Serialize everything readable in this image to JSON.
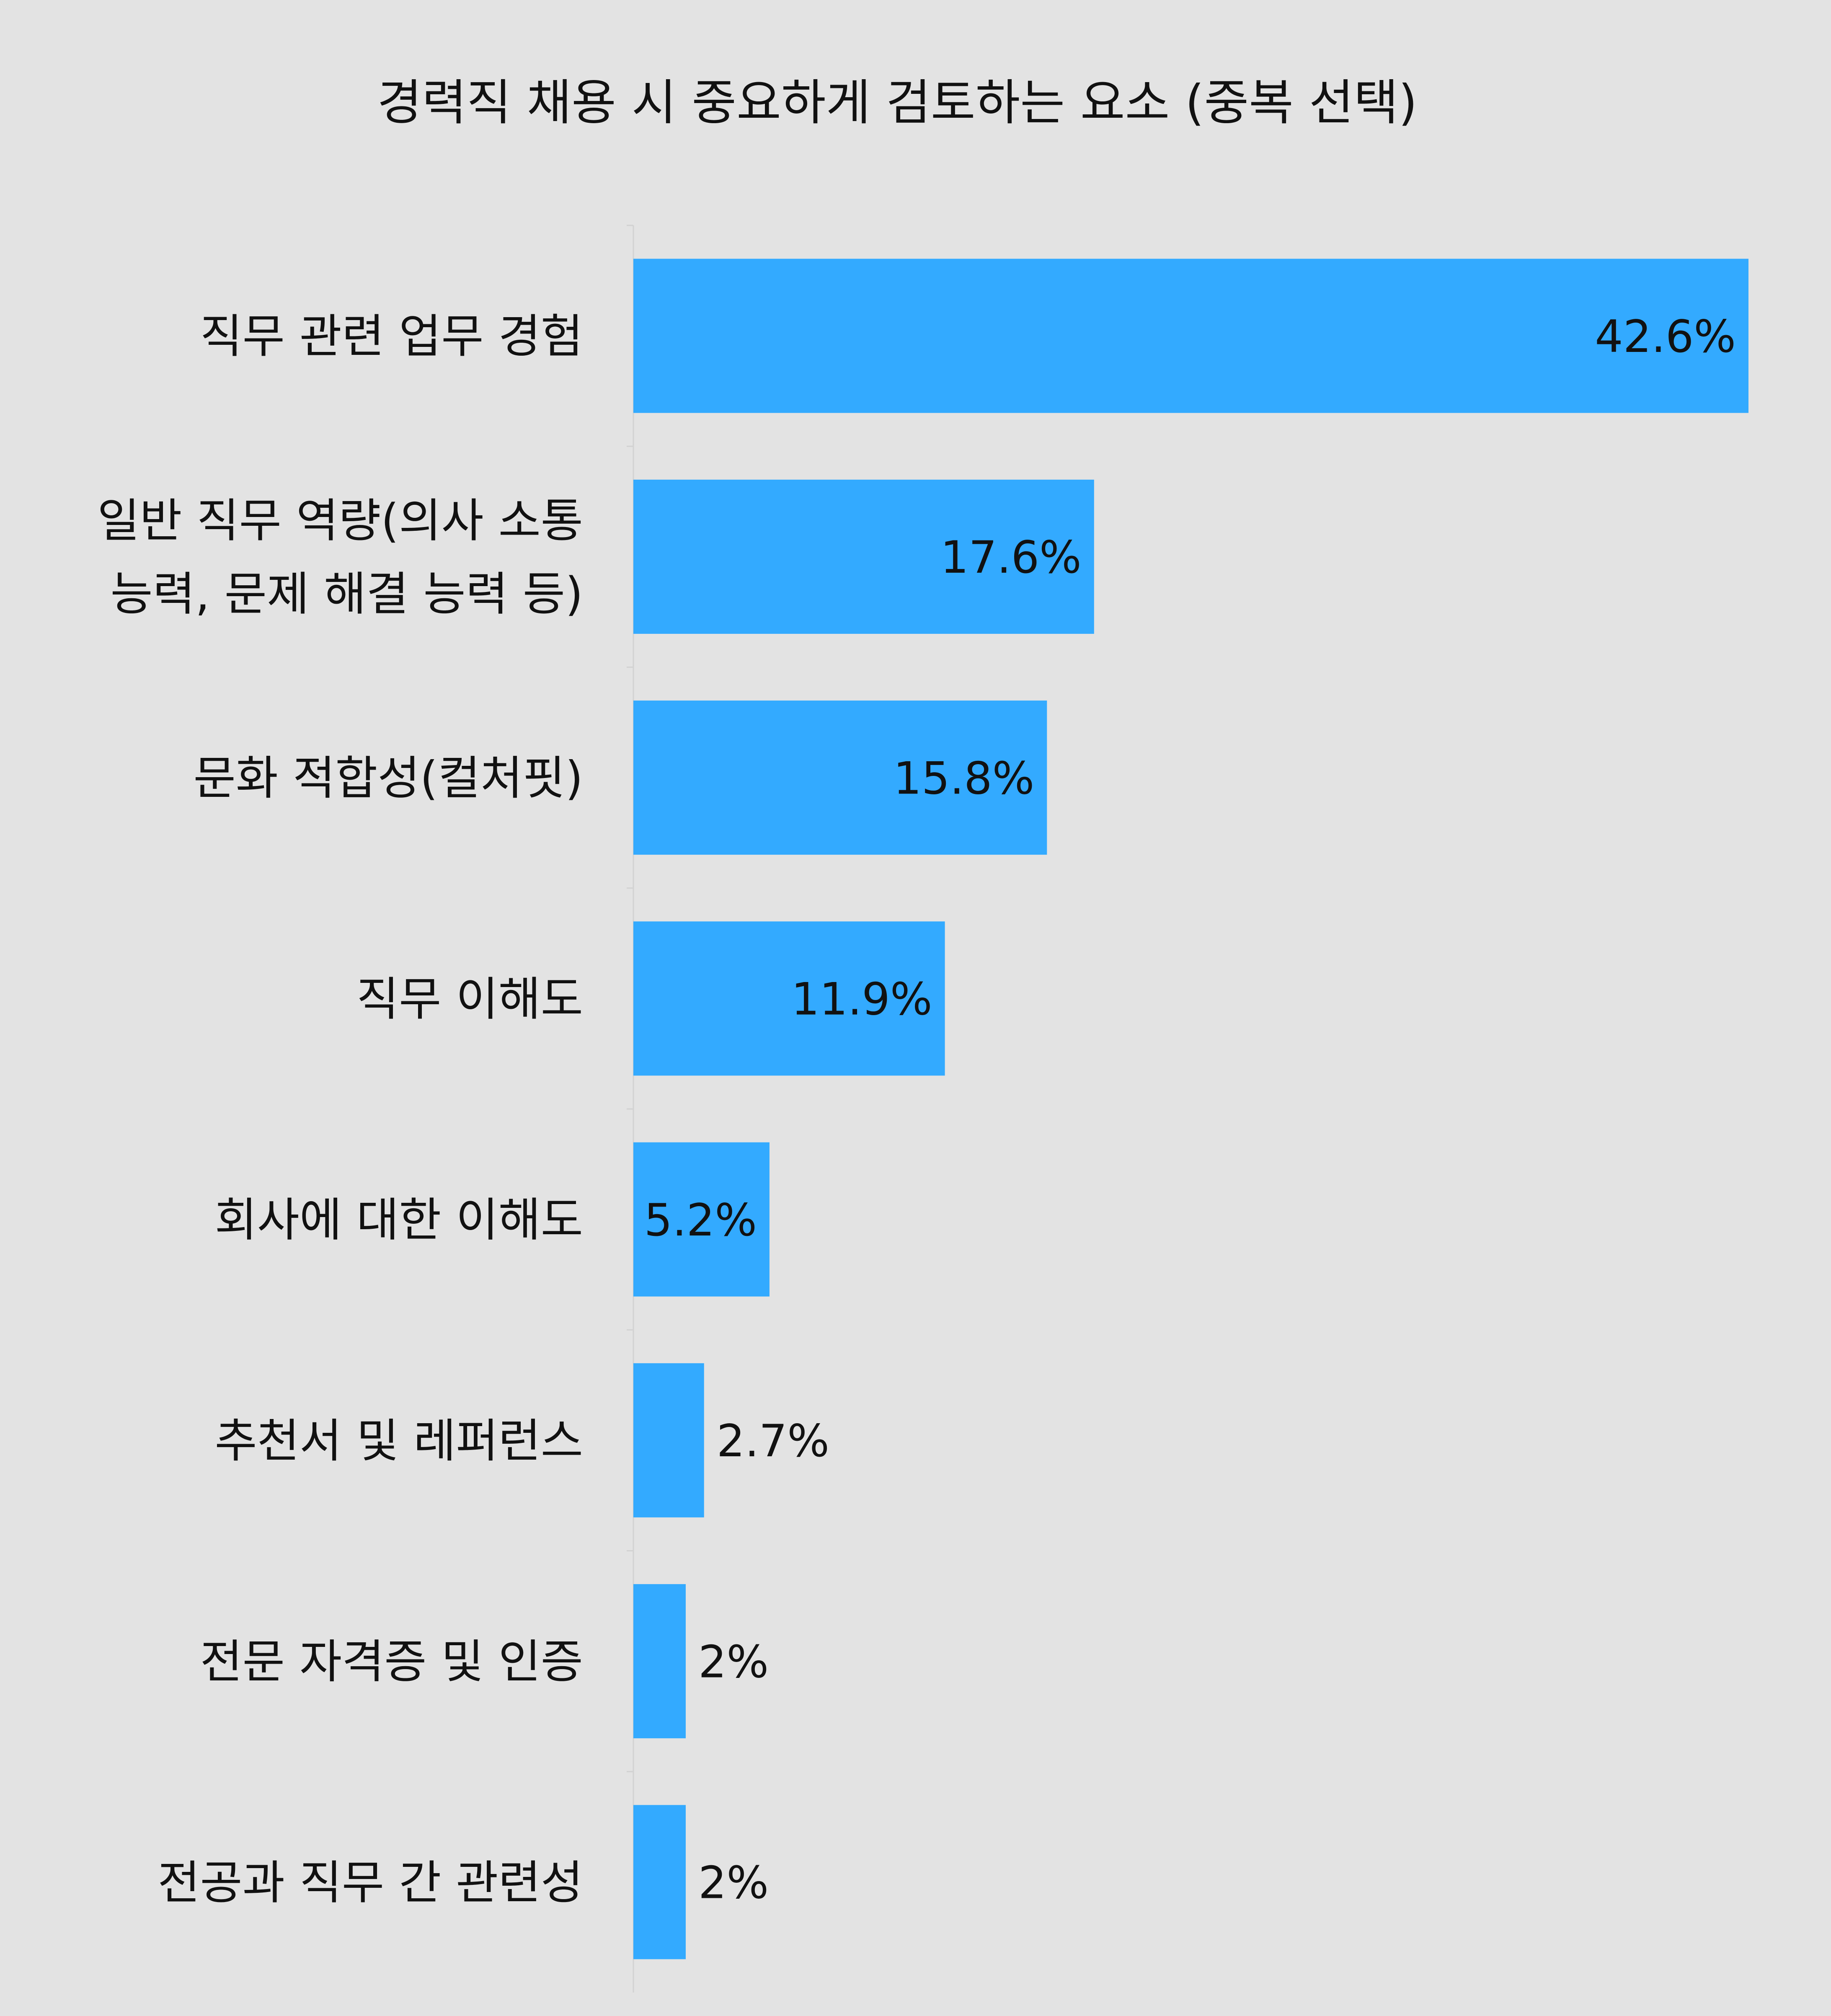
{
  "colors": {
    "background": "#e3e3e3",
    "bar": "#33aaff",
    "text": "#111111",
    "axis": "#d2d2d2"
  },
  "chart_data": {
    "type": "bar",
    "orientation": "horizontal",
    "title": "경력직 채용 시 중요하게 검토하는 요소 (중복 선택)",
    "xlabel": "",
    "ylabel": "",
    "xlim": [
      0,
      42.6
    ],
    "grid": false,
    "legend": "none",
    "unit": "%",
    "categories": [
      [
        "직무 관련 업무 경험"
      ],
      [
        "일반 직무 역량(의사 소통",
        "능력, 문제 해결 능력 등)"
      ],
      [
        "문화 적합성(컬처핏)"
      ],
      [
        "직무 이해도"
      ],
      [
        "회사에 대한 이해도"
      ],
      [
        "추천서 및 레퍼런스"
      ],
      [
        "전문 자격증 및 인증"
      ],
      [
        "전공과 직무 간 관련성"
      ]
    ],
    "values": [
      42.6,
      17.6,
      15.8,
      11.9,
      5.2,
      2.7,
      2,
      2
    ],
    "value_labels": [
      "42.6%",
      "17.6%",
      "15.8%",
      "11.9%",
      "5.2%",
      "2.7%",
      "2%",
      "2%"
    ]
  }
}
